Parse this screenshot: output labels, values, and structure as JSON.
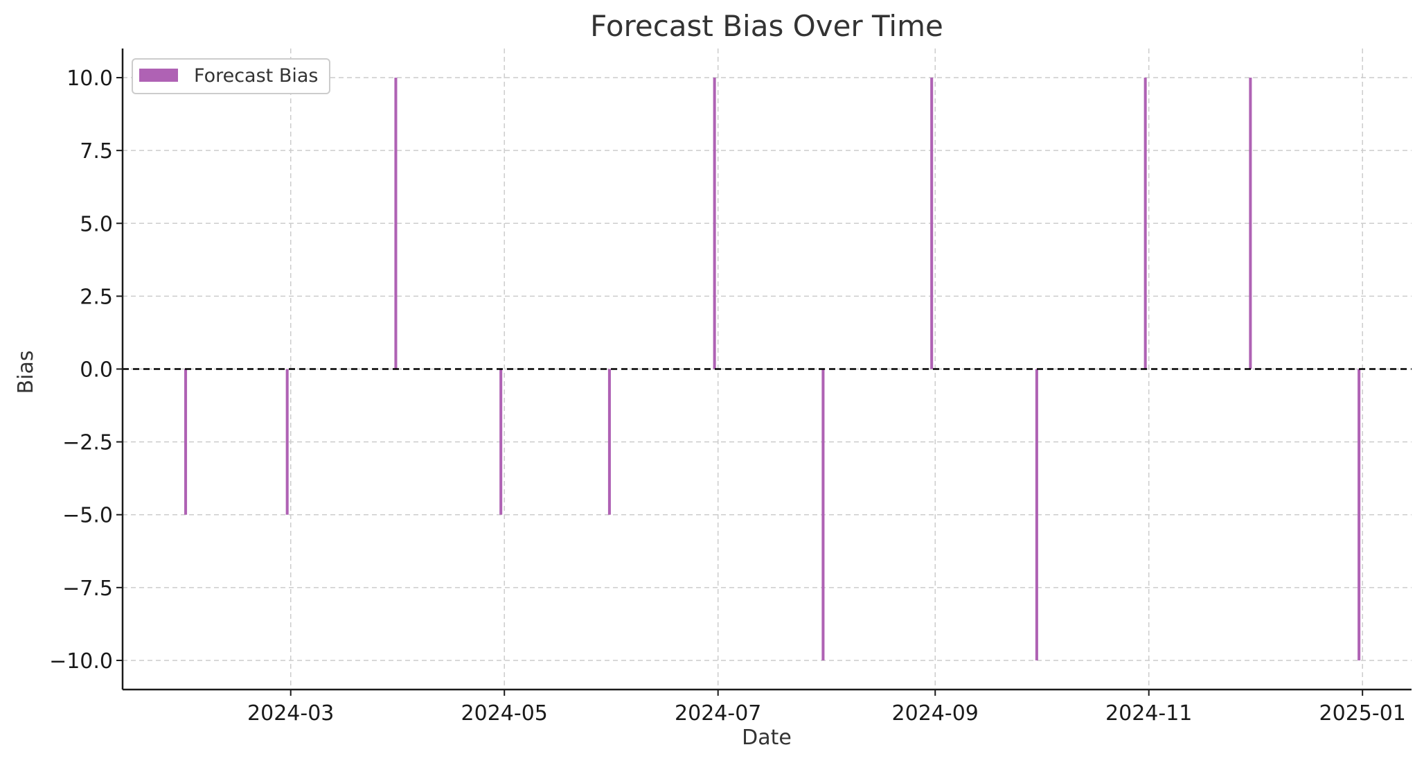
{
  "chart_data": {
    "type": "bar",
    "title": "Forecast Bias Over Time",
    "xlabel": "Date",
    "ylabel": "Bias",
    "legend": {
      "entries": [
        "Forecast Bias"
      ],
      "placement": "top-left"
    },
    "grid": true,
    "ylim": [
      -11,
      11
    ],
    "xlim": [
      "2024-01-13",
      "2025-01-15"
    ],
    "x_tick_labels": [
      "2024-03",
      "2024-05",
      "2024-07",
      "2024-09",
      "2024-11",
      "2025-01"
    ],
    "y_ticks": [
      10.0,
      7.5,
      5.0,
      2.5,
      0.0,
      -2.5,
      -5.0,
      -7.5,
      -10.0
    ],
    "y_tick_labels": [
      "10.0",
      "7.5",
      "5.0",
      "2.5",
      "0.0",
      "−2.5",
      "−5.0",
      "−7.5",
      "−10.0"
    ],
    "reference_line": {
      "y": 0,
      "style": "dashed",
      "color": "#000000"
    },
    "series": [
      {
        "name": "Forecast Bias",
        "color": "#AF62B4",
        "x": [
          "2024-01-31",
          "2024-02-29",
          "2024-03-31",
          "2024-04-30",
          "2024-05-31",
          "2024-06-30",
          "2024-07-31",
          "2024-08-31",
          "2024-09-30",
          "2024-10-31",
          "2024-11-30",
          "2024-12-31"
        ],
        "values": [
          -5,
          -5,
          10,
          -5,
          -5,
          10,
          -10,
          10,
          -10,
          10,
          10,
          -10
        ]
      }
    ]
  }
}
